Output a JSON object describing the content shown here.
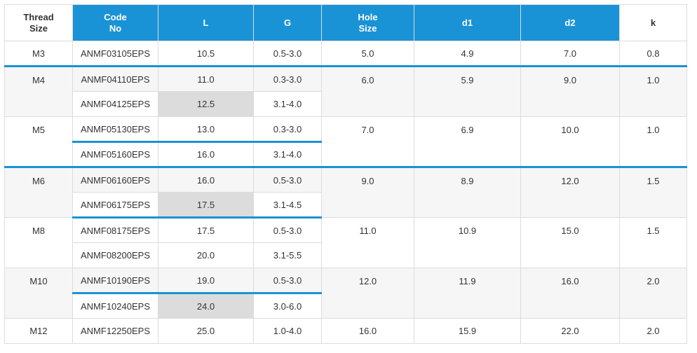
{
  "headers": {
    "thread_size": [
      "Thread",
      "Size"
    ],
    "code_no": [
      "Code",
      "No"
    ],
    "l": "L",
    "g": "G",
    "hole_size": [
      "Hole",
      "Size"
    ],
    "d1": "d1",
    "d2": "d2",
    "k": "k"
  },
  "colors": {
    "header_blue": "#1a92d6",
    "highlight": "#dcdcdc",
    "zebra": "#f6f6f6"
  },
  "groups": [
    {
      "thread": "M3",
      "hole": "5.0",
      "d1": "4.9",
      "d2": "7.0",
      "k": "0.8",
      "rows": [
        {
          "code": "ANMF03105EPS",
          "L": "10.5",
          "G": "0.5-3.0"
        }
      ]
    },
    {
      "thread": "M4",
      "hole": "6.0",
      "d1": "5.9",
      "d2": "9.0",
      "k": "1.0",
      "rows": [
        {
          "code": "ANMF04110EPS",
          "L": "11.0",
          "G": "0.3-3.0"
        },
        {
          "code": "ANMF04125EPS",
          "L": "12.5",
          "G": "3.1-4.0"
        }
      ]
    },
    {
      "thread": "M5",
      "hole": "7.0",
      "d1": "6.9",
      "d2": "10.0",
      "k": "1.0",
      "rows": [
        {
          "code": "ANMF05130EPS",
          "L": "13.0",
          "G": "0.3-3.0"
        },
        {
          "code": "ANMF05160EPS",
          "L": "16.0",
          "G": "3.1-4.0"
        }
      ]
    },
    {
      "thread": "M6",
      "hole": "9.0",
      "d1": "8.9",
      "d2": "12.0",
      "k": "1.5",
      "rows": [
        {
          "code": "ANMF06160EPS",
          "L": "16.0",
          "G": "0.5-3.0"
        },
        {
          "code": "ANMF06175EPS",
          "L": "17.5",
          "G": "3.1-4.5"
        }
      ]
    },
    {
      "thread": "M8",
      "hole": "11.0",
      "d1": "10.9",
      "d2": "15.0",
      "k": "1.5",
      "rows": [
        {
          "code": "ANMF08175EPS",
          "L": "17.5",
          "G": "0.5-3.0"
        },
        {
          "code": "ANMF08200EPS",
          "L": "20.0",
          "G": "3.1-5.5"
        }
      ]
    },
    {
      "thread": "M10",
      "hole": "12.0",
      "d1": "11.9",
      "d2": "16.0",
      "k": "2.0",
      "rows": [
        {
          "code": "ANMF10190EPS",
          "L": "19.0",
          "G": "0.5-3.0"
        },
        {
          "code": "ANMF10240EPS",
          "L": "24.0",
          "G": "3.0-6.0"
        }
      ]
    },
    {
      "thread": "M12",
      "hole": "16.0",
      "d1": "15.9",
      "d2": "22.0",
      "k": "2.0",
      "rows": [
        {
          "code": "ANMF12250EPS",
          "L": "25.0",
          "G": "1.0-4.0"
        }
      ]
    }
  ]
}
